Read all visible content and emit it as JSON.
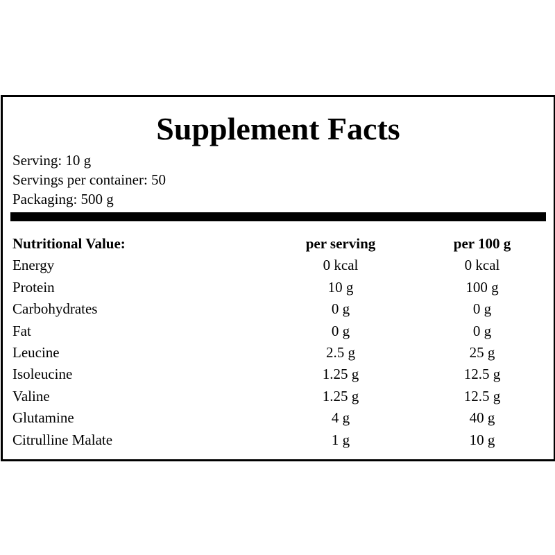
{
  "panel": {
    "title": "Supplement Facts",
    "serving": "Serving: 10 g",
    "servings_per_container": "Servings per container: 50",
    "packaging": "Packaging: 500 g"
  },
  "table": {
    "headers": {
      "name": "Nutritional Value:",
      "per_serving": "per serving",
      "per_100g": "per 100 g"
    },
    "rows": [
      {
        "name": "Energy",
        "per_serving": "0 kcal",
        "per_100g": "0 kcal"
      },
      {
        "name": "Protein",
        "per_serving": "10 g",
        "per_100g": "100 g"
      },
      {
        "name": "Carbohydrates",
        "per_serving": "0 g",
        "per_100g": "0 g"
      },
      {
        "name": "Fat",
        "per_serving": "0 g",
        "per_100g": "0 g"
      },
      {
        "name": "Leucine",
        "per_serving": "2.5 g",
        "per_100g": "25 g"
      },
      {
        "name": "Isoleucine",
        "per_serving": "1.25 g",
        "per_100g": "12.5 g"
      },
      {
        "name": "Valine",
        "per_serving": "1.25 g",
        "per_100g": "12.5 g"
      },
      {
        "name": "Glutamine",
        "per_serving": "4 g",
        "per_100g": "40 g"
      },
      {
        "name": "Citrulline Malate",
        "per_serving": "1 g",
        "per_100g": "10 g"
      }
    ]
  }
}
